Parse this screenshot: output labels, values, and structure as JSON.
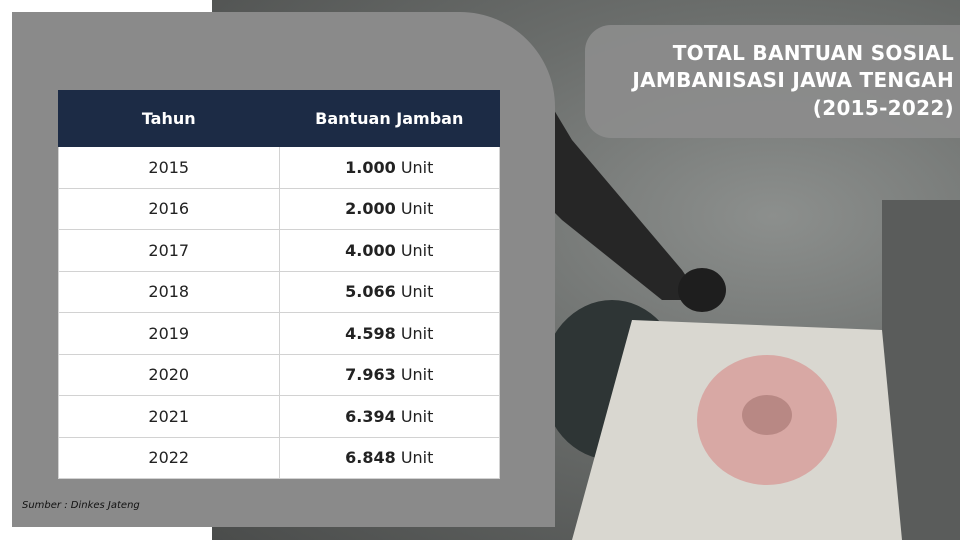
{
  "title": {
    "lines": [
      "TOTAL BANTUAN SOSIAL",
      "JAMBANISASI JAWA TENGAH",
      "(2015-2022)"
    ]
  },
  "table": {
    "header": [
      "Tahun",
      "Bantuan Jamban"
    ],
    "rows": [
      {
        "year": "2015",
        "amount": "1.000",
        "unit": "Unit"
      },
      {
        "year": "2016",
        "amount": "2.000",
        "unit": "Unit"
      },
      {
        "year": "2017",
        "amount": "4.000",
        "unit": "Unit"
      },
      {
        "year": "2018",
        "amount": "5.066",
        "unit": "Unit"
      },
      {
        "year": "2019",
        "amount": "4.598",
        "unit": "Unit"
      },
      {
        "year": "2020",
        "amount": "7.963",
        "unit": "Unit"
      },
      {
        "year": "2021",
        "amount": "6.394",
        "unit": "Unit"
      },
      {
        "year": "2022",
        "amount": "6.848",
        "unit": "Unit"
      }
    ]
  },
  "source": "Sumber : Dinkes Jateng"
}
